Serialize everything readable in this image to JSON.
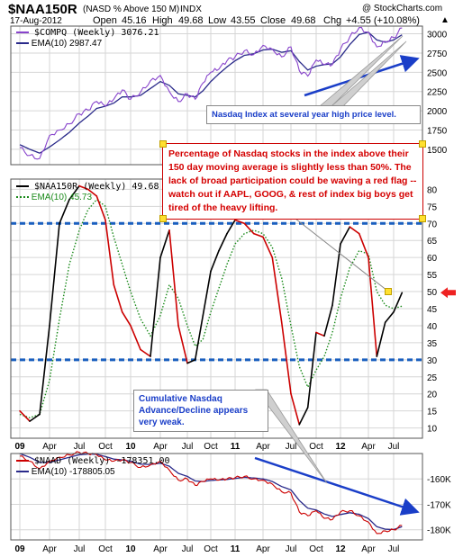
{
  "header": {
    "symbol": "$NAA150R",
    "name": "(NASD % Above 150 M)",
    "exchange": "INDX",
    "brand": "@ StockCharts.com",
    "date": "17-Aug-2012",
    "open_label": "Open",
    "open": "45.16",
    "high_label": "High",
    "high": "49.68",
    "low_label": "Low",
    "low": "43.55",
    "close_label": "Close",
    "close": "49.68",
    "chg_label": "Chg",
    "chg": "+4.55 (+10.08%)",
    "chg_symbol": "▲"
  },
  "legends": {
    "compq": "$COMPQ (Weekly) 3076.21",
    "compq_ema": "EMA(10) 2987.47",
    "naa": "$NAA150R (Weekly) 49.68",
    "naa_ema": "EMA(10) 45.73",
    "naad": "$NAAD (Weekly) -178351.00",
    "naad_ema": "EMA(10) -178805.05"
  },
  "annotations": {
    "nasdaq": "Nasdaq Index at several year high price level.",
    "breadth": "Percentage of Nasdaq stocks in the index above their 150 day moving average is slightly less than 50%.  The lack of broad participation could be waving a red flag -- watch out if AAPL, GOOG, & rest of index big boys get tired of the heavy lifting.",
    "ad": "Cumulative Nasdaq Advance/Decline appears very weak."
  },
  "colors": {
    "compq_line": "#8844cc",
    "compq_ema": "#2a2a8a",
    "naa_up": "#000000",
    "naa_down": "#cc0000",
    "naa_ema": "#1a8a1a",
    "naad_line": "#cc0000",
    "naad_ema": "#2a2a8a",
    "arrows": "#1a3ec8",
    "ref_lines": "#1a5fbf",
    "price_arrow": "#ee2222",
    "grid": "#d6d6d6"
  },
  "chart_data": [
    {
      "type": "line",
      "panel": "top",
      "title": "$COMPQ (Weekly)",
      "x": [
        "2009-01",
        "2009-02",
        "2009-03",
        "2009-04",
        "2009-05",
        "2009-06",
        "2009-07",
        "2009-08",
        "2009-09",
        "2009-10",
        "2009-11",
        "2009-12",
        "2010-01",
        "2010-02",
        "2010-03",
        "2010-04",
        "2010-05",
        "2010-06",
        "2010-07",
        "2010-08",
        "2010-09",
        "2010-10",
        "2010-11",
        "2010-12",
        "2011-01",
        "2011-02",
        "2011-03",
        "2011-04",
        "2011-05",
        "2011-06",
        "2011-07",
        "2011-08",
        "2011-09",
        "2011-10",
        "2011-11",
        "2011-12",
        "2012-01",
        "2012-02",
        "2012-03",
        "2012-04",
        "2012-05",
        "2012-06",
        "2012-07",
        "2012-08"
      ],
      "series": [
        {
          "name": "$COMPQ",
          "values": [
            1520,
            1420,
            1380,
            1680,
            1750,
            1830,
            1960,
            2010,
            2120,
            2060,
            2150,
            2270,
            2150,
            2240,
            2390,
            2460,
            2250,
            2120,
            2220,
            2150,
            2360,
            2500,
            2540,
            2650,
            2700,
            2780,
            2730,
            2850,
            2800,
            2700,
            2830,
            2520,
            2450,
            2660,
            2600,
            2600,
            2800,
            2960,
            3080,
            3020,
            2830,
            2900,
            2950,
            3076
          ]
        },
        {
          "name": "EMA(10)",
          "values": [
            1560,
            1500,
            1450,
            1530,
            1620,
            1720,
            1840,
            1930,
            2030,
            2060,
            2100,
            2180,
            2180,
            2200,
            2290,
            2380,
            2330,
            2220,
            2200,
            2180,
            2260,
            2380,
            2480,
            2570,
            2650,
            2720,
            2740,
            2790,
            2800,
            2760,
            2780,
            2640,
            2530,
            2580,
            2600,
            2610,
            2700,
            2860,
            2990,
            3020,
            2920,
            2890,
            2920,
            2987
          ]
        }
      ],
      "xlabel": "",
      "ylabel": "",
      "ylim": [
        1300,
        3100
      ],
      "y_ticks": [
        "1500",
        "1750",
        "2000",
        "2250",
        "2500",
        "2750",
        "3000"
      ],
      "x_ticks": [
        "09",
        "Apr",
        "Jul",
        "Oct",
        "10",
        "Apr",
        "Jul",
        "Oct",
        "11",
        "Apr",
        "Jul",
        "Oct",
        "12",
        "Apr",
        "Jul"
      ]
    },
    {
      "type": "line",
      "panel": "middle",
      "title": "$NAA150R (Weekly)",
      "x": [
        "2009-01",
        "2009-02",
        "2009-03",
        "2009-04",
        "2009-05",
        "2009-06",
        "2009-07",
        "2009-08",
        "2009-09",
        "2009-10",
        "2009-11",
        "2009-12",
        "2010-01",
        "2010-02",
        "2010-03",
        "2010-04",
        "2010-05",
        "2010-06",
        "2010-07",
        "2010-08",
        "2010-09",
        "2010-10",
        "2010-11",
        "2010-12",
        "2011-01",
        "2011-02",
        "2011-03",
        "2011-04",
        "2011-05",
        "2011-06",
        "2011-07",
        "2011-08",
        "2011-09",
        "2011-10",
        "2011-11",
        "2011-12",
        "2012-01",
        "2012-02",
        "2012-03",
        "2012-04",
        "2012-05",
        "2012-06",
        "2012-07",
        "2012-08"
      ],
      "series": [
        {
          "name": "$NAA150R",
          "values": [
            15,
            12,
            14,
            40,
            70,
            77,
            81,
            80,
            78,
            71,
            52,
            44,
            40,
            33,
            31,
            60,
            68,
            40,
            29,
            30,
            43,
            56,
            62,
            67,
            71,
            70,
            67,
            66,
            60,
            41,
            20,
            11,
            16,
            38,
            37,
            46,
            64,
            69,
            67,
            60,
            31,
            41,
            44,
            49.68
          ]
        },
        {
          "name": "EMA(10)",
          "values": [
            14,
            13,
            14,
            24,
            42,
            58,
            68,
            74,
            77,
            75,
            66,
            58,
            50,
            42,
            37,
            43,
            52,
            48,
            40,
            34,
            36,
            44,
            51,
            58,
            64,
            67,
            68,
            67,
            63,
            54,
            40,
            28,
            22,
            27,
            31,
            38,
            48,
            57,
            62,
            61,
            50,
            46,
            45,
            45.73
          ]
        }
      ],
      "xlabel": "",
      "ylabel": "",
      "ylim": [
        7,
        83
      ],
      "y_ticks": [
        "10",
        "15",
        "20",
        "25",
        "30",
        "35",
        "40",
        "45",
        "50",
        "55",
        "60",
        "65",
        "70",
        "75",
        "80"
      ],
      "reference_lines": [
        70,
        30
      ],
      "price_marker": 49.68,
      "x_ticks": [
        "09",
        "Apr",
        "Jul",
        "Oct",
        "10",
        "Apr",
        "Jul",
        "Oct",
        "11",
        "Apr",
        "Jul",
        "Oct",
        "12",
        "Apr",
        "Jul"
      ]
    },
    {
      "type": "line",
      "panel": "bottom",
      "title": "$NAAD (Weekly)",
      "x": [
        "2009-01",
        "2009-02",
        "2009-03",
        "2009-04",
        "2009-05",
        "2009-06",
        "2009-07",
        "2009-08",
        "2009-09",
        "2009-10",
        "2009-11",
        "2009-12",
        "2010-01",
        "2010-02",
        "2010-03",
        "2010-04",
        "2010-05",
        "2010-06",
        "2010-07",
        "2010-08",
        "2010-09",
        "2010-10",
        "2010-11",
        "2010-12",
        "2011-01",
        "2011-02",
        "2011-03",
        "2011-04",
        "2011-05",
        "2011-06",
        "2011-07",
        "2011-08",
        "2011-09",
        "2011-10",
        "2011-11",
        "2011-12",
        "2012-01",
        "2012-02",
        "2012-03",
        "2012-04",
        "2012-05",
        "2012-06",
        "2012-07",
        "2012-08"
      ],
      "series": [
        {
          "name": "$NAAD",
          "values": [
            -151000,
            -153000,
            -156000,
            -153000,
            -151500,
            -150500,
            -149500,
            -150000,
            -150500,
            -152500,
            -153000,
            -152500,
            -153500,
            -155500,
            -154500,
            -153000,
            -156500,
            -160500,
            -160000,
            -162500,
            -161000,
            -160000,
            -160500,
            -160000,
            -159500,
            -159000,
            -160000,
            -160500,
            -162000,
            -165000,
            -165500,
            -173000,
            -174500,
            -172500,
            -175500,
            -176000,
            -173000,
            -172500,
            -174500,
            -177000,
            -181500,
            -180500,
            -180000,
            -178351
          ]
        },
        {
          "name": "EMA(10)",
          "values": [
            -150000,
            -151500,
            -153500,
            -153500,
            -152500,
            -151500,
            -150500,
            -150200,
            -150300,
            -151200,
            -152200,
            -152500,
            -153000,
            -154200,
            -154300,
            -153800,
            -155000,
            -157800,
            -159000,
            -160800,
            -161000,
            -160600,
            -160400,
            -160200,
            -159800,
            -159400,
            -159600,
            -160000,
            -161000,
            -163000,
            -164300,
            -168500,
            -171500,
            -172200,
            -173800,
            -174800,
            -174000,
            -173300,
            -173900,
            -175600,
            -178800,
            -179800,
            -179900,
            -178805
          ]
        }
      ],
      "xlabel": "",
      "ylabel": "",
      "ylim": [
        -184000,
        -150000
      ],
      "y_ticks": [
        "-160K",
        "-170K",
        "-180K"
      ],
      "x_ticks": [
        "09",
        "Apr",
        "Jul",
        "Oct",
        "10",
        "Apr",
        "Jul",
        "Oct",
        "11",
        "Apr",
        "Jul",
        "Oct",
        "12",
        "Apr",
        "Jul"
      ]
    }
  ]
}
